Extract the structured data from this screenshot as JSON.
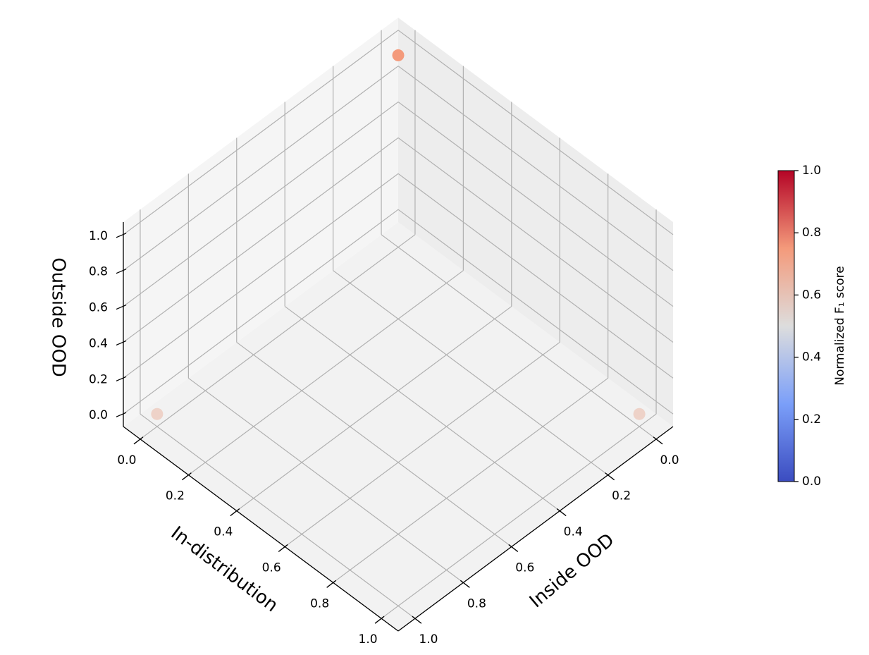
{
  "chart_data": {
    "type": "scatter3d",
    "x_label": "In-distribution",
    "y_label": "Inside OOD",
    "z_label": "Outside OOD",
    "x": [
      0,
      1,
      0
    ],
    "y": [
      1,
      0,
      0
    ],
    "z": [
      0,
      0,
      1
    ],
    "values": [
      0.65,
      0.65,
      0.75
    ],
    "xlim": [
      -0.07,
      1.07
    ],
    "ylim": [
      -0.07,
      1.07
    ],
    "zlim": [
      -0.07,
      1.07
    ],
    "xticks": [
      {
        "value": 0,
        "label": "0.0"
      },
      0.2,
      0.4,
      0.6,
      0.8,
      {
        "value": 1,
        "label": "1.0"
      }
    ],
    "yticks": [
      {
        "value": 0,
        "label": "0.0"
      },
      0.2,
      0.4,
      0.6,
      0.8,
      {
        "value": 1,
        "label": "1.0"
      }
    ],
    "zticks": [
      {
        "value": 0,
        "label": "0.0"
      },
      0.2,
      0.4,
      0.6,
      0.8,
      {
        "value": 1,
        "label": "1.0"
      }
    ],
    "grid": true,
    "colormap_colors": [
      "#3b4cc0",
      "#7b9ff9",
      "#dddddd",
      "#f49a7b",
      "#b40426"
    ],
    "colorbar_label": "Normalized F₁ score",
    "clim": [
      0,
      1
    ],
    "cticks": [
      {
        "value": 0,
        "label": "0.0"
      },
      0.2,
      0.4,
      0.6,
      0.8,
      {
        "value": 1,
        "label": "1.0"
      }
    ]
  }
}
